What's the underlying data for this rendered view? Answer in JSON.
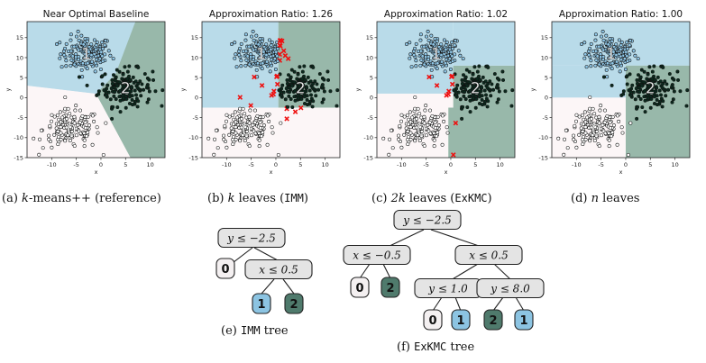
{
  "figure": {
    "panels": [
      {
        "id": "a",
        "title": "Near Optimal Baseline",
        "caption_letter": "(a)",
        "caption_math": "k",
        "caption_text": "-means++ (reference)",
        "caption_mono": "",
        "mode": "baseline"
      },
      {
        "id": "b",
        "title": "Approximation Ratio: 1.26",
        "caption_letter": "(b)",
        "caption_math": "k",
        "caption_text": " leaves (",
        "caption_mono": "IMM",
        "caption_after": ")",
        "mode": "imm"
      },
      {
        "id": "c",
        "title": "Approximation Ratio: 1.02",
        "caption_letter": "(c)",
        "caption_math": "2k",
        "caption_text": " leaves (",
        "caption_mono": "ExKMC",
        "caption_after": ")",
        "mode": "exkmc"
      },
      {
        "id": "d",
        "title": "Approximation Ratio: 1.00",
        "caption_letter": "(d)",
        "caption_math": "n",
        "caption_text": " leaves",
        "caption_mono": "",
        "caption_after": "",
        "mode": "nleaves"
      }
    ],
    "axes": {
      "xlabel": "x",
      "ylabel": "y",
      "xlim": [
        -15,
        13
      ],
      "ylim": [
        -15,
        19
      ],
      "xticks": [
        "-10",
        "-5",
        "0",
        "5",
        "10"
      ],
      "yticks": [
        "15",
        "10",
        "5",
        "0",
        "-5",
        "-10",
        "-15"
      ]
    },
    "cluster_labels": [
      "1",
      "2",
      "0"
    ],
    "trees": {
      "imm": {
        "caption_letter": "(e)",
        "caption_mono": "IMM",
        "caption_text": " tree",
        "nodes": {
          "root": "y ≤ −2.5",
          "inner": "x ≤ 0.5",
          "leaf_a": "0",
          "leaf_b": "1",
          "leaf_c": "2"
        }
      },
      "exkmc": {
        "caption_letter": "(f)",
        "caption_mono": "ExKMC",
        "caption_text": " tree",
        "nodes": {
          "root": "y ≤ −2.5",
          "left": "x ≤ −0.5",
          "right": "x ≤ 0.5",
          "rl": "y ≤ 1.0",
          "rr": "y ≤ 8.0",
          "l0": "0",
          "l2": "2",
          "r0": "0",
          "r1": "1",
          "r2": "2",
          "r3": "1"
        }
      }
    },
    "colors": {
      "region1": "#b9dbe9",
      "region2": "#98b8aa",
      "region0": "#fcf6f7",
      "leaf0": "#f4f0f1",
      "leaf1": "#8cc4e2",
      "leaf2": "#4f7a6c",
      "inner": "#e6e6e6",
      "mistake": "#ee1111"
    }
  },
  "chart_data": [
    {
      "type": "scatter",
      "title": "Near Optimal Baseline",
      "xlabel": "x",
      "ylabel": "y",
      "xlim": [
        -15,
        13
      ],
      "ylim": [
        -15,
        19
      ],
      "series": [
        {
          "name": "1",
          "center": [
            -3,
            11
          ]
        },
        {
          "name": "2",
          "center": [
            5,
            2.5
          ]
        },
        {
          "name": "0",
          "center": [
            -6,
            -8
          ]
        }
      ]
    },
    {
      "type": "scatter",
      "title": "Approximation Ratio: 1.26",
      "xlabel": "x",
      "ylabel": "y",
      "xlim": [
        -15,
        13
      ],
      "ylim": [
        -15,
        19
      ],
      "series": [
        {
          "name": "1",
          "center": [
            -3,
            11
          ]
        },
        {
          "name": "2",
          "center": [
            5,
            2.5
          ]
        },
        {
          "name": "0",
          "center": [
            -6,
            -8
          ]
        }
      ]
    },
    {
      "type": "scatter",
      "title": "Approximation Ratio: 1.02",
      "xlabel": "x",
      "ylabel": "y",
      "xlim": [
        -15,
        13
      ],
      "ylim": [
        -15,
        19
      ],
      "series": [
        {
          "name": "1",
          "center": [
            -3,
            11
          ]
        },
        {
          "name": "2",
          "center": [
            5,
            2.5
          ]
        },
        {
          "name": "0",
          "center": [
            -6,
            -8
          ]
        }
      ]
    },
    {
      "type": "scatter",
      "title": "Approximation Ratio: 1.00",
      "xlabel": "x",
      "ylabel": "y",
      "xlim": [
        -15,
        13
      ],
      "ylim": [
        -15,
        19
      ],
      "series": [
        {
          "name": "1",
          "center": [
            -3,
            11
          ]
        },
        {
          "name": "2",
          "center": [
            5,
            2.5
          ]
        },
        {
          "name": "0",
          "center": [
            -6,
            -8
          ]
        }
      ]
    }
  ]
}
